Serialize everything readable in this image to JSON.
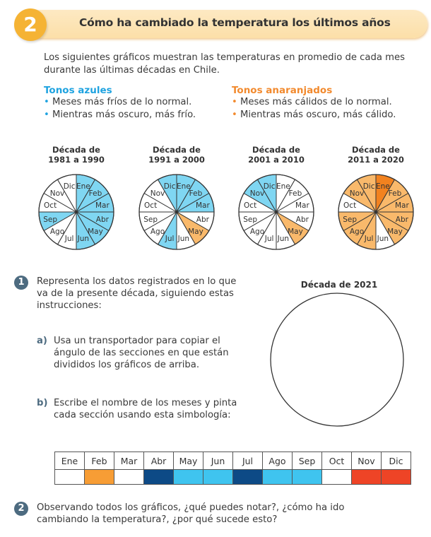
{
  "header": {
    "number": "2",
    "title": "Cómo ha cambiado la temperatura los últimos años"
  },
  "intro": "Los siguientes gráficos muestran las temperaturas en promedio de cada mes durante las últimas décadas en Chile.",
  "legend": {
    "blue": {
      "title": "Tonos azules",
      "items": [
        "Meses más fríos de lo normal.",
        "Mientras más oscuro, más frío."
      ]
    },
    "orange": {
      "title": "Tonos anaranjados",
      "items": [
        "Meses más cálidos de lo normal.",
        "Mientras más oscuro, más cálido."
      ]
    }
  },
  "colors": {
    "white": "#ffffff",
    "light_blue": "#7fd6f2",
    "light_orange": "#f9b96b",
    "dark_orange": "#f2821f",
    "sym_orange": "#f79d35",
    "sym_light_blue": "#3fc4ef",
    "sym_dark_blue": "#0d4a86",
    "sym_red": "#ee4426",
    "stroke": "#333333"
  },
  "chart_data": [
    {
      "type": "pie",
      "title_line1": "Década de",
      "title_line2": "1981 a 1990",
      "slices": [
        "Ene",
        "Feb",
        "Mar",
        "Abr",
        "May",
        "Jun",
        "Jul",
        "Ago",
        "Sep",
        "Oct",
        "Nov",
        "Dic"
      ],
      "values": [
        1,
        1,
        1,
        1,
        1,
        1,
        1,
        1,
        1,
        1,
        1,
        1
      ],
      "fills": [
        "light_blue",
        "light_blue",
        "light_blue",
        "light_blue",
        "light_blue",
        "light_blue",
        "white",
        "white",
        "light_blue",
        "white",
        "white",
        "white"
      ]
    },
    {
      "type": "pie",
      "title_line1": "Década de",
      "title_line2": "1991 a 2000",
      "slices": [
        "Ene",
        "Feb",
        "Mar",
        "Abr",
        "May",
        "Jun",
        "Jul",
        "Ago",
        "Sep",
        "Oct",
        "Nov",
        "Dic"
      ],
      "values": [
        1,
        1,
        1,
        1,
        1,
        1,
        1,
        1,
        1,
        1,
        1,
        1
      ],
      "fills": [
        "light_blue",
        "light_blue",
        "light_blue",
        "white",
        "light_orange",
        "white",
        "light_blue",
        "white",
        "white",
        "white",
        "white",
        "light_blue"
      ]
    },
    {
      "type": "pie",
      "title_line1": "Década de",
      "title_line2": "2001 a 2010",
      "slices": [
        "Ene",
        "Feb",
        "Mar",
        "Abr",
        "May",
        "Jun",
        "Jul",
        "Ago",
        "Sep",
        "Oct",
        "Nov",
        "Dic"
      ],
      "values": [
        1,
        1,
        1,
        1,
        1,
        1,
        1,
        1,
        1,
        1,
        1,
        1
      ],
      "fills": [
        "white",
        "white",
        "white",
        "white",
        "light_orange",
        "white",
        "white",
        "white",
        "white",
        "white",
        "light_blue",
        "light_blue"
      ]
    },
    {
      "type": "pie",
      "title_line1": "Década de",
      "title_line2": "2011 a 2020",
      "slices": [
        "Ene",
        "Feb",
        "Mar",
        "Abr",
        "May",
        "Jun",
        "Jul",
        "Ago",
        "Sep",
        "Oct",
        "Nov",
        "Dic"
      ],
      "values": [
        1,
        1,
        1,
        1,
        1,
        1,
        1,
        1,
        1,
        1,
        1,
        1
      ],
      "fills": [
        "dark_orange",
        "light_orange",
        "light_orange",
        "light_orange",
        "light_orange",
        "white",
        "light_orange",
        "light_orange",
        "light_orange",
        "white",
        "light_orange",
        "light_orange"
      ]
    }
  ],
  "question1": {
    "number": "1",
    "text": "Representa los datos registrados en lo que va de la presente década, siguiendo estas instrucciones:",
    "a_label": "a)",
    "a_text": "Usa un transportador para copiar el ángulo de las secciones en que están divididos los gráficos de arriba.",
    "b_label": "b)",
    "b_text": "Escribe el nombre de los meses y pinta cada sección usando esta simbología:",
    "empty_chart_title": "Década de 2021"
  },
  "symbology": {
    "months": [
      "Ene",
      "Feb",
      "Mar",
      "Abr",
      "May",
      "Jun",
      "Jul",
      "Ago",
      "Sep",
      "Oct",
      "Nov",
      "Dic"
    ],
    "fills": [
      "white",
      "sym_orange",
      "white",
      "sym_dark_blue",
      "sym_light_blue",
      "sym_light_blue",
      "sym_dark_blue",
      "sym_light_blue",
      "sym_light_blue",
      "white",
      "sym_red",
      "sym_red"
    ]
  },
  "question2": {
    "number": "2",
    "text": "Observando todos los gráficos, ¿qué puedes notar?, ¿cómo ha ido cambiando la temperatura?, ¿por qué sucede esto?"
  }
}
